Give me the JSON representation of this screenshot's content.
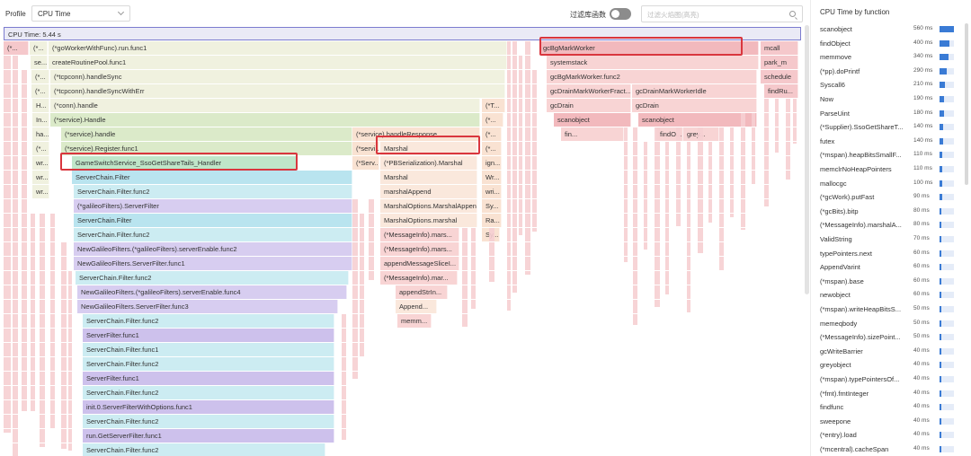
{
  "header": {
    "profile_label": "Profile",
    "profile_value": "CPU Time",
    "filter_label": "过滤库函数",
    "search_placeholder": "过滤火焰图(高亮)"
  },
  "flame": {
    "root_label": "CPU Time: 5.44 s",
    "frames": [
      {
        "label": "(*...",
        "color": "c-pk3"
      },
      {
        "label": "(*...",
        "color": "c-y"
      },
      {
        "label": "(*goWorkerWithFunc).run.func1",
        "color": "c-y"
      },
      {
        "label": "se...",
        "color": "c-y"
      },
      {
        "label": "createRoutinePool.func1",
        "color": "c-y"
      },
      {
        "label": "(*...",
        "color": "c-y"
      },
      {
        "label": "(*tcpconn).handleSync",
        "color": "c-y"
      },
      {
        "label": "(*...",
        "color": "c-y"
      },
      {
        "label": "(*tcpconn).handleSyncWithErr",
        "color": "c-y"
      },
      {
        "label": "H...",
        "color": "c-y"
      },
      {
        "label": "(*conn).handle",
        "color": "c-y"
      },
      {
        "label": "(*T...",
        "color": "c-o"
      },
      {
        "label": "In...",
        "color": "c-y"
      },
      {
        "label": "(*service).Handle",
        "color": "c-g"
      },
      {
        "label": "(*...",
        "color": "c-o"
      },
      {
        "label": "ha...",
        "color": "c-y"
      },
      {
        "label": "(*service).handle",
        "color": "c-g"
      },
      {
        "label": "(*service).handleResponse",
        "color": "c-o"
      },
      {
        "label": "(*...",
        "color": "c-o"
      },
      {
        "label": "(*...",
        "color": "c-y"
      },
      {
        "label": "(*service).Register.func1",
        "color": "c-g"
      },
      {
        "label": "(*servi...",
        "color": "c-o"
      },
      {
        "label": "Marshal",
        "color": "c-k"
      },
      {
        "label": "(*...",
        "color": "c-o"
      },
      {
        "label": "wr...",
        "color": "c-y"
      },
      {
        "label": "GameSwitchService_SsoGetShareTails_Handler",
        "color": "c-gr"
      },
      {
        "label": "(*Serv...",
        "color": "c-o"
      },
      {
        "label": "(*PBSerialization).Marshal",
        "color": "c-k"
      },
      {
        "label": "ign...",
        "color": "c-o"
      },
      {
        "label": "wr...",
        "color": "c-y"
      },
      {
        "label": "ServerChain.Filter",
        "color": "c-c"
      },
      {
        "label": "Marshal",
        "color": "c-k"
      },
      {
        "label": "Wr...",
        "color": "c-o"
      },
      {
        "label": "wr...",
        "color": "c-y"
      },
      {
        "label": "ServerChain.Filter.func2",
        "color": "c-b"
      },
      {
        "label": "marshalAppend",
        "color": "c-k"
      },
      {
        "label": "wri...",
        "color": "c-o"
      },
      {
        "label": "(*galileoFilters).ServerFilter",
        "color": "c-p"
      },
      {
        "label": "MarshalOptions.MarshalAppend",
        "color": "c-k"
      },
      {
        "label": "Sy...",
        "color": "c-o"
      },
      {
        "label": "ServerChain.Filter",
        "color": "c-c"
      },
      {
        "label": "MarshalOptions.marshal",
        "color": "c-k"
      },
      {
        "label": "Ra...",
        "color": "c-o"
      },
      {
        "label": "ServerChain.Filter.func2",
        "color": "c-b"
      },
      {
        "label": "(*MessageInfo).mars...",
        "color": "c-pk"
      },
      {
        "label": "Sy...",
        "color": "c-o"
      },
      {
        "label": "NewGalileoFilters.(*galileoFilters).serverEnable.func2",
        "color": "c-p"
      },
      {
        "label": "(*MessageInfo).mars...",
        "color": "c-pk"
      },
      {
        "label": "NewGalileoFilters.ServerFilter.func1",
        "color": "c-p"
      },
      {
        "label": "appendMessageSliceI...",
        "color": "c-pk"
      },
      {
        "label": "ServerChain.Filter.func2",
        "color": "c-b"
      },
      {
        "label": "(*MessageInfo).mar...",
        "color": "c-pk"
      },
      {
        "label": "NewGalileoFilters.(*galileoFilters).serverEnable.func4",
        "color": "c-p"
      },
      {
        "label": "appendStrIn...",
        "color": "c-pk"
      },
      {
        "label": "NewGalileoFilters.ServerFilter.func3",
        "color": "c-p"
      },
      {
        "label": "Append...",
        "color": "c-k"
      },
      {
        "label": "memm...",
        "color": "c-pk"
      },
      {
        "label": "ServerChain.Filter.func2",
        "color": "c-b"
      },
      {
        "label": "ServerFilter.func1",
        "color": "c-v"
      },
      {
        "label": "ServerChain.Filter.func1",
        "color": "c-b"
      },
      {
        "label": "ServerChain.Filter.func2",
        "color": "c-b"
      },
      {
        "label": "ServerFilter.func1",
        "color": "c-v"
      },
      {
        "label": "ServerChain.Filter.func2",
        "color": "c-b"
      },
      {
        "label": "init.0.ServerFilterWithOptions.func1",
        "color": "c-v"
      },
      {
        "label": "ServerChain.Filter.func2",
        "color": "c-b"
      },
      {
        "label": "run.GetServerFilter.func1",
        "color": "c-v"
      },
      {
        "label": "ServerChain.Filter.func2",
        "color": "c-b"
      },
      {
        "label": "gcBgMarkWorker",
        "color": "c-pk2"
      },
      {
        "label": "mcall",
        "color": "c-pk3"
      },
      {
        "label": "systemstack",
        "color": "c-pk"
      },
      {
        "label": "park_m",
        "color": "c-pk3"
      },
      {
        "label": "gcBgMarkWorker.func2",
        "color": "c-pk"
      },
      {
        "label": "schedule",
        "color": "c-pk3"
      },
      {
        "label": "gcDrainMarkWorkerFract...",
        "color": "c-pk"
      },
      {
        "label": "gcDrainMarkWorkerIdle",
        "color": "c-pk"
      },
      {
        "label": "findRu...",
        "color": "c-pk3"
      },
      {
        "label": "gcDrain",
        "color": "c-pk"
      },
      {
        "label": "gcDrain",
        "color": "c-pk"
      },
      {
        "label": "scanobject",
        "color": "c-pk2"
      },
      {
        "label": "scanobject",
        "color": "c-pk2"
      },
      {
        "label": "fin...",
        "color": "c-pk"
      },
      {
        "label": "findO...",
        "color": "c-pk"
      },
      {
        "label": "grey...",
        "color": "c-pk"
      }
    ]
  },
  "panel": {
    "title": "CPU Time by function",
    "max_ms": 560,
    "items": [
      {
        "name": "scanobject",
        "ms": "560 ms",
        "value": 560
      },
      {
        "name": "findObject",
        "ms": "400 ms",
        "value": 400
      },
      {
        "name": "memmove",
        "ms": "340 ms",
        "value": 340
      },
      {
        "name": "(*pp).doPrintf",
        "ms": "290 ms",
        "value": 290
      },
      {
        "name": "Syscall6",
        "ms": "210 ms",
        "value": 210
      },
      {
        "name": "Now",
        "ms": "190 ms",
        "value": 190
      },
      {
        "name": "ParseUint",
        "ms": "180 ms",
        "value": 180
      },
      {
        "name": "(*Supplier).SsoGetShareT...",
        "ms": "140 ms",
        "value": 140
      },
      {
        "name": "futex",
        "ms": "140 ms",
        "value": 140
      },
      {
        "name": "(*mspan).heapBitsSmallF...",
        "ms": "110 ms",
        "value": 110
      },
      {
        "name": "memclrNoHeapPointers",
        "ms": "110 ms",
        "value": 110
      },
      {
        "name": "mallocgc",
        "ms": "100 ms",
        "value": 100
      },
      {
        "name": "(*gcWork).putFast",
        "ms": "90 ms",
        "value": 90
      },
      {
        "name": "(*gcBits).bitp",
        "ms": "80 ms",
        "value": 80
      },
      {
        "name": "(*MessageInfo).marshalA...",
        "ms": "80 ms",
        "value": 80
      },
      {
        "name": "ValidString",
        "ms": "70 ms",
        "value": 70
      },
      {
        "name": "typePointers.next",
        "ms": "60 ms",
        "value": 60
      },
      {
        "name": "AppendVarint",
        "ms": "60 ms",
        "value": 60
      },
      {
        "name": "(*mspan).base",
        "ms": "60 ms",
        "value": 60
      },
      {
        "name": "newobject",
        "ms": "60 ms",
        "value": 60
      },
      {
        "name": "(*mspan).writeHeapBitsS...",
        "ms": "50 ms",
        "value": 50
      },
      {
        "name": "memeqbody",
        "ms": "50 ms",
        "value": 50
      },
      {
        "name": "(*MessageInfo).sizePoint...",
        "ms": "50 ms",
        "value": 50
      },
      {
        "name": "gcWriteBarrier",
        "ms": "40 ms",
        "value": 40
      },
      {
        "name": "greyobject",
        "ms": "40 ms",
        "value": 40
      },
      {
        "name": "(*mspan).typePointersOf...",
        "ms": "40 ms",
        "value": 40
      },
      {
        "name": "(*fmt).fmtInteger",
        "ms": "40 ms",
        "value": 40
      },
      {
        "name": "findfunc",
        "ms": "40 ms",
        "value": 40
      },
      {
        "name": "sweepone",
        "ms": "40 ms",
        "value": 40
      },
      {
        "name": "(*entry).load",
        "ms": "40 ms",
        "value": 40
      },
      {
        "name": "(*mcentral).cacheSpan",
        "ms": "40 ms",
        "value": 40
      }
    ]
  }
}
